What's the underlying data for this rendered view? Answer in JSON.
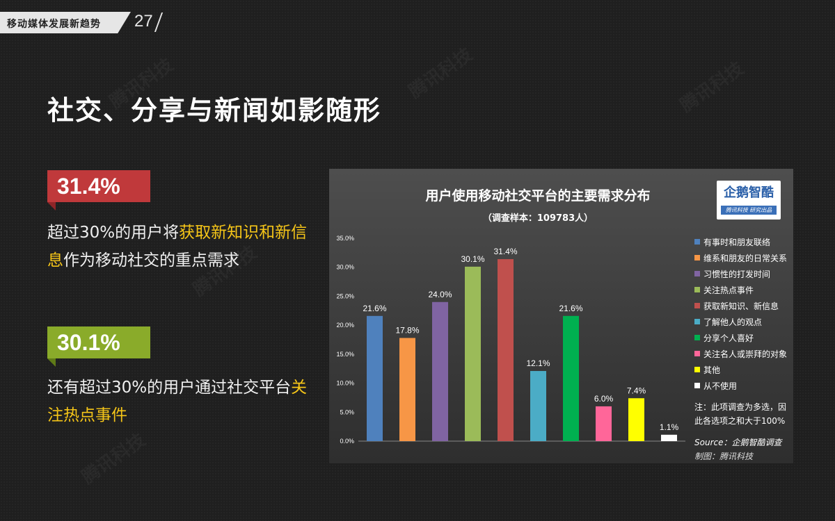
{
  "header": {
    "section": "移动媒体发展新趋势",
    "page": "27"
  },
  "headline": "社交、分享与新闻如影随形",
  "watermark": "腾讯科技",
  "stat1": {
    "value": "31.4%",
    "color": "#c0393b",
    "text_a": "超过30%的用户将",
    "text_hl": "获取新知识和新信息",
    "text_b": "作为移动社交的重点需求"
  },
  "stat2": {
    "value": "30.1%",
    "color": "#8aab2a",
    "text_a": "还有超过30%的用户通过社交平台",
    "text_hl": "关注热点事件",
    "text_b": ""
  },
  "chart": {
    "logo_text": "企鹅智酷",
    "logo_sub": "腾讯科技 研究出品",
    "note": "注：此项调查为多选，因此各选项之和大于100%",
    "source": "Source：企鹅智酷调查",
    "maker": "制图：腾讯科技"
  },
  "chart_data": {
    "type": "bar",
    "title": "用户使用移动社交平台的主要需求分布",
    "subtitle": "（调查样本：109783人）",
    "categories": [
      "有事时和朋友联络",
      "维系和朋友的日常关系",
      "习惯性的打发时间",
      "关注热点事件",
      "获取新知识、新信息",
      "了解他人的观点",
      "分享个人喜好",
      "关注名人或崇拜的对象",
      "其他",
      "从不使用"
    ],
    "values": [
      21.6,
      17.8,
      24.0,
      30.1,
      31.4,
      12.1,
      21.6,
      6.0,
      7.4,
      1.1
    ],
    "value_labels": [
      "21.6%",
      "17.8%",
      "24.0%",
      "30.1%",
      "31.4%",
      "12.1%",
      "21.6%",
      "6.0%",
      "7.4%",
      "1.1%"
    ],
    "colors": [
      "#4f81bd",
      "#f79646",
      "#8064a2",
      "#9bbb59",
      "#c0504d",
      "#4bacc6",
      "#00b050",
      "#ff6699",
      "#ffff00",
      "#ffffff"
    ],
    "yticks": [
      "0.0%",
      "5.0%",
      "10.0%",
      "15.0%",
      "20.0%",
      "25.0%",
      "30.0%",
      "35.0%"
    ],
    "ylim": [
      0,
      35
    ],
    "legend_position": "right",
    "grid": false
  }
}
